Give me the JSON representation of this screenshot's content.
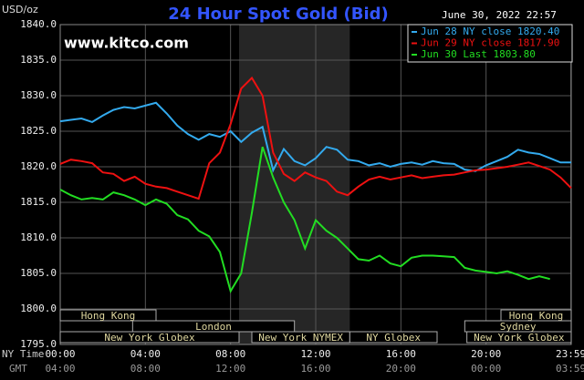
{
  "chart_data": {
    "type": "line",
    "title": "24 Hour Spot Gold (Bid)",
    "y_unit": "USD/oz",
    "url": "www.kitco.com",
    "timestamp": "June 30, 2022 22:57",
    "x_row_labels": [
      "NY Time",
      "GMT"
    ],
    "x": [
      0,
      0.5,
      1,
      1.5,
      2,
      2.5,
      3,
      3.5,
      4,
      4.5,
      5,
      5.5,
      6,
      6.5,
      7,
      7.5,
      8,
      8.5,
      9,
      9.5,
      10,
      10.5,
      11,
      11.5,
      12,
      12.5,
      13,
      13.5,
      14,
      14.5,
      15,
      15.5,
      16,
      16.5,
      17,
      17.5,
      18,
      18.5,
      19,
      19.5,
      20,
      20.5,
      21,
      21.5,
      22,
      22.5,
      23,
      23.5,
      24
    ],
    "xlim": [
      0,
      24
    ],
    "xticks": [
      {
        "value": 0,
        "label": "00:00"
      },
      {
        "value": 4,
        "label": "04:00"
      },
      {
        "value": 8,
        "label": "08:00"
      },
      {
        "value": 12,
        "label": "12:00"
      },
      {
        "value": 16,
        "label": "16:00"
      },
      {
        "value": 20,
        "label": "20:00"
      },
      {
        "value": 23.983,
        "label": "23:59"
      }
    ],
    "gmt_labels": [
      "04:00",
      "08:00",
      "12:00",
      "16:00",
      "20:00",
      "00:00",
      "03:59"
    ],
    "ylim": [
      1795,
      1840
    ],
    "yticks": [
      {
        "value": 1795,
        "label": "1795.0"
      },
      {
        "value": 1800,
        "label": "1800.0"
      },
      {
        "value": 1805,
        "label": "1805.0"
      },
      {
        "value": 1810,
        "label": "1810.0"
      },
      {
        "value": 1815,
        "label": "1815.0"
      },
      {
        "value": 1820,
        "label": "1820.0"
      },
      {
        "value": 1825,
        "label": "1825.0"
      },
      {
        "value": 1830,
        "label": "1830.0"
      },
      {
        "value": 1835,
        "label": "1835.0"
      },
      {
        "value": 1840,
        "label": "1840.0"
      }
    ],
    "grid": true,
    "legend": "upper right",
    "shaded_range": [
      8.4,
      13.6
    ],
    "sessions": [
      [
        {
          "name": "Hong Kong",
          "start": 0,
          "end": 4.5
        },
        {
          "name": "Hong Kong",
          "start": 20.7,
          "end": 24
        }
      ],
      [
        {
          "name": "London",
          "start": 3.4,
          "end": 11.0
        },
        {
          "name": "Sydney",
          "start": 19.0,
          "end": 24
        }
      ],
      [
        {
          "name": "New York Globex",
          "start": 0,
          "end": 8.4
        },
        {
          "name": "New York NYMEX",
          "start": 9.0,
          "end": 13.6
        },
        {
          "name": "NY Globex",
          "start": 13.6,
          "end": 17.7
        },
        {
          "name": "New York Globex",
          "start": 19.1,
          "end": 24
        }
      ]
    ],
    "series": [
      {
        "name": "Jun 28 NY close 1820.40",
        "color": "#33aaee",
        "values": [
          1826.4,
          1826.6,
          1826.8,
          1826.3,
          1827.2,
          1828.0,
          1828.4,
          1828.2,
          1828.6,
          1829.0,
          1827.5,
          1825.8,
          1824.6,
          1823.8,
          1824.6,
          1824.2,
          1825.0,
          1823.5,
          1824.8,
          1825.6,
          1819.5,
          1822.5,
          1820.8,
          1820.2,
          1821.2,
          1822.8,
          1822.4,
          1821.0,
          1820.8,
          1820.2,
          1820.5,
          1820.0,
          1820.4,
          1820.6,
          1820.3,
          1820.8,
          1820.5,
          1820.4,
          1819.6,
          1819.4,
          1820.2,
          1820.8,
          1821.4,
          1822.4,
          1822.0,
          1821.8,
          1821.2,
          1820.6,
          1820.6
        ]
      },
      {
        "name": "Jun 29 NY close 1817.90",
        "color": "#ee1111",
        "values": [
          1820.4,
          1821.0,
          1820.8,
          1820.5,
          1819.2,
          1819.0,
          1818.0,
          1818.6,
          1817.6,
          1817.2,
          1817.0,
          1816.5,
          1816.0,
          1815.5,
          1820.5,
          1822.0,
          1826.0,
          1831.0,
          1832.5,
          1830.0,
          1822.0,
          1819.0,
          1818.0,
          1819.2,
          1818.5,
          1818.0,
          1816.5,
          1816.0,
          1817.2,
          1818.2,
          1818.6,
          1818.2,
          1818.5,
          1818.8,
          1818.4,
          1818.6,
          1818.8,
          1818.9,
          1819.2,
          1819.5,
          1819.6,
          1819.8,
          1820.0,
          1820.3,
          1820.6,
          1820.1,
          1819.6,
          1818.5,
          1817.0
        ]
      },
      {
        "name": "Jun 30 Last 1803.80",
        "color": "#22dd22",
        "values": [
          1816.8,
          1816.0,
          1815.4,
          1815.6,
          1815.4,
          1816.4,
          1816.0,
          1815.4,
          1814.6,
          1815.4,
          1814.8,
          1813.2,
          1812.6,
          1811.0,
          1810.2,
          1808.0,
          1802.5,
          1805.0,
          1813.5,
          1822.8,
          1818.5,
          1815.0,
          1812.5,
          1808.5,
          1812.5,
          1811.0,
          1810.0,
          1808.5,
          1807.0,
          1806.8,
          1807.5,
          1806.4,
          1806.0,
          1807.2,
          1807.5,
          1807.5,
          1807.4,
          1807.3,
          1805.8,
          1805.4,
          1805.2,
          1805.0,
          1805.3,
          1804.8,
          1804.2,
          1804.6,
          1804.2,
          null,
          null
        ]
      }
    ]
  }
}
